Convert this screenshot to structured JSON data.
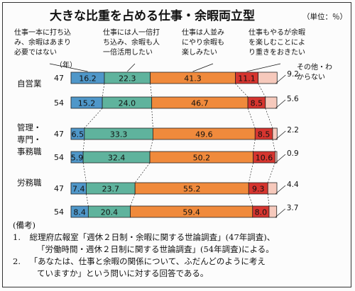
{
  "chart_data": {
    "type": "bar",
    "stacked": true,
    "horizontal": true,
    "title": "大きな比重を占める仕事・余暇両立型",
    "unit_label": "（単位：％）",
    "year_unit": "（年）",
    "legend_placement": "top",
    "series": [
      {
        "name": "仕事一本に打ち込み、余暇はあまり必要ではない",
        "label_lines": [
          "仕事一本に打ち込",
          "み、余暇はあまり",
          "必要ではない"
        ],
        "color": "#4f97c9",
        "values": [
          16.2,
          15.2,
          6.5,
          5.9,
          7.4,
          8.4
        ]
      },
      {
        "name": "仕事には人一倍打ち込み、余暇も人一倍活用したい",
        "label_lines": [
          "仕事には人一倍打",
          "ち込み、余暇も人",
          "一倍活用したい"
        ],
        "color": "#5fb39d",
        "values": [
          22.3,
          24.0,
          33.3,
          32.4,
          23.7,
          20.4
        ]
      },
      {
        "name": "仕事は人並みにやり余暇も楽しみたい",
        "label_lines": [
          "仕事は人並み",
          "にやり余暇も",
          "楽しみたい"
        ],
        "color": "#f08a3c",
        "values": [
          41.3,
          46.7,
          49.6,
          50.2,
          55.2,
          59.4
        ]
      },
      {
        "name": "仕事もやるが余暇を楽しむことに重きをおきたい",
        "label_lines": [
          "仕事もやるが余暇",
          "を楽しむことによ",
          "り重きをおきたい"
        ],
        "color": "#d6352f",
        "values": [
          11.1,
          8.5,
          8.5,
          10.6,
          9.3,
          8.0
        ]
      },
      {
        "name": "その他・わからない",
        "label_lines": [
          "その他・わ",
          "からない"
        ],
        "color": "#f6c9bc",
        "values": [
          9.2,
          5.6,
          2.2,
          0.9,
          4.4,
          3.7
        ]
      }
    ],
    "groups": [
      {
        "label_lines": [
          "自営業"
        ]
      },
      {
        "label_lines": [
          "管理・",
          "専門・",
          "事務職"
        ]
      },
      {
        "label_lines": [
          "労務職"
        ]
      }
    ],
    "rows": [
      {
        "group": 0,
        "year": "47"
      },
      {
        "group": 0,
        "year": "54"
      },
      {
        "group": 1,
        "year": "47"
      },
      {
        "group": 1,
        "year": "54"
      },
      {
        "group": 2,
        "year": "47"
      },
      {
        "group": 2,
        "year": "54"
      }
    ],
    "xlim": [
      0,
      100
    ]
  },
  "notes": {
    "heading": "(備考)",
    "items": [
      {
        "num": "1.",
        "lines": [
          "総理府広報室「週休２日制・余暇に関する世論調査」(47年調査)、",
          "「労働時間・週休２日制に関する世論調査」(54年調査)による。"
        ]
      },
      {
        "num": "2.",
        "lines": [
          "「あなたは、仕事と余暇の関係について、ふだんどのように考え",
          "ていますか」という問いに対する回答である。"
        ]
      }
    ]
  }
}
